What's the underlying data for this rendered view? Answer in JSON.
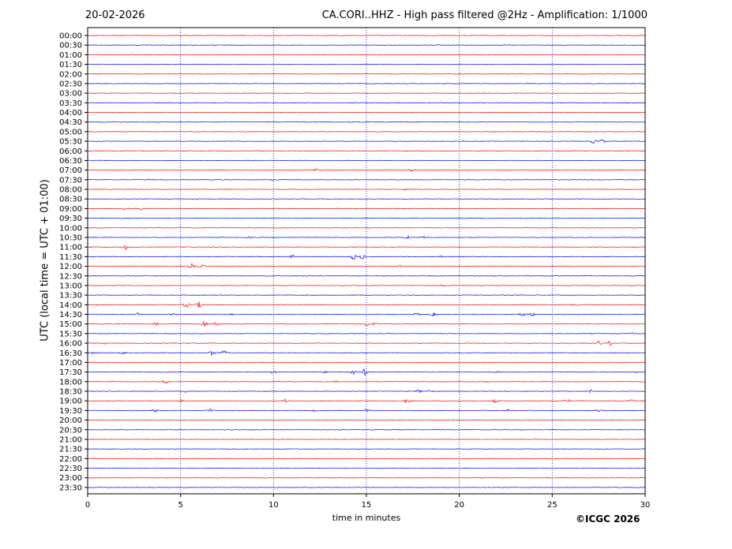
{
  "header": {
    "date": "20-02-2026",
    "title": "CA.CORI..HHZ - High pass filtered @2Hz - Amplification: 1/1000"
  },
  "footer": {
    "copyright": "©ICGC 2026"
  },
  "colors": {
    "even_trace": "#ff0000",
    "odd_trace": "#0000ff",
    "grid": "#0000aa"
  },
  "chart_data": {
    "type": "line",
    "title": "CA.CORI..HHZ - High pass filtered @2Hz - Amplification: 1/1000",
    "xlabel": "time in minutes",
    "ylabel": "UTC (local time = UTC + 01:00)",
    "xlim": [
      0,
      30
    ],
    "xticks": [
      0,
      5,
      10,
      15,
      20,
      25,
      30
    ],
    "grid_x": [
      5,
      10,
      15,
      20,
      25
    ],
    "grid": "vertical dotted",
    "series": [
      {
        "label": "00:00",
        "events": []
      },
      {
        "label": "00:30",
        "events": []
      },
      {
        "label": "01:00",
        "events": []
      },
      {
        "label": "01:30",
        "events": []
      },
      {
        "label": "02:00",
        "events": []
      },
      {
        "label": "02:30",
        "events": []
      },
      {
        "label": "03:00",
        "events": []
      },
      {
        "label": "03:30",
        "events": []
      },
      {
        "label": "04:00",
        "events": []
      },
      {
        "label": "04:30",
        "events": []
      },
      {
        "label": "05:00",
        "events": []
      },
      {
        "label": "05:30",
        "events": [
          {
            "t": 27.2,
            "a": 2.5
          },
          {
            "t": 27.7,
            "a": 2.5
          }
        ]
      },
      {
        "label": "06:00",
        "events": []
      },
      {
        "label": "06:30",
        "events": [
          {
            "t": 0.5,
            "a": 1.5
          }
        ]
      },
      {
        "label": "07:00",
        "events": [
          {
            "t": 12.3,
            "a": 1.5
          },
          {
            "t": 17.4,
            "a": 1.2
          }
        ]
      },
      {
        "label": "07:30",
        "events": [
          {
            "t": 9.9,
            "a": 1
          }
        ]
      },
      {
        "label": "08:00",
        "events": [
          {
            "t": 17.1,
            "a": 1.2
          }
        ]
      },
      {
        "label": "08:30",
        "events": []
      },
      {
        "label": "09:00",
        "events": [
          {
            "t": 2.0,
            "a": 1.5
          },
          {
            "t": 2.8,
            "a": 2.5
          }
        ]
      },
      {
        "label": "09:30",
        "events": []
      },
      {
        "label": "10:00",
        "events": []
      },
      {
        "label": "10:30",
        "events": [
          {
            "t": 8.7,
            "a": 1
          },
          {
            "t": 17.2,
            "a": 2
          },
          {
            "t": 18.1,
            "a": 2
          }
        ]
      },
      {
        "label": "11:00",
        "events": [
          {
            "t": 2.0,
            "a": 3.5
          }
        ]
      },
      {
        "label": "11:30",
        "events": [
          {
            "t": 11.0,
            "a": 2
          },
          {
            "t": 14.3,
            "a": 3.5
          },
          {
            "t": 14.8,
            "a": 3
          },
          {
            "t": 19.0,
            "a": 1
          }
        ]
      },
      {
        "label": "12:00",
        "events": [
          {
            "t": 5.6,
            "a": 3.5
          },
          {
            "t": 6.1,
            "a": 3
          },
          {
            "t": 16.8,
            "a": 1
          }
        ]
      },
      {
        "label": "12:30",
        "events": []
      },
      {
        "label": "13:00",
        "events": [
          {
            "t": 19.1,
            "a": 1.5
          }
        ]
      },
      {
        "label": "13:30",
        "events": []
      },
      {
        "label": "14:00",
        "events": [
          {
            "t": 0.5,
            "a": 1
          },
          {
            "t": 5.3,
            "a": 3.5
          },
          {
            "t": 6.0,
            "a": 3.5
          },
          {
            "t": 26.2,
            "a": 1.5
          }
        ]
      },
      {
        "label": "14:30",
        "events": [
          {
            "t": 2.7,
            "a": 2
          },
          {
            "t": 4.6,
            "a": 1.5
          },
          {
            "t": 7.7,
            "a": 1.5
          },
          {
            "t": 17.7,
            "a": 3
          },
          {
            "t": 18.6,
            "a": 3
          },
          {
            "t": 23.4,
            "a": 3
          },
          {
            "t": 23.9,
            "a": 2.5
          }
        ]
      },
      {
        "label": "15:00",
        "events": [
          {
            "t": 3.7,
            "a": 2
          },
          {
            "t": 6.3,
            "a": 4
          },
          {
            "t": 6.9,
            "a": 3.5
          },
          {
            "t": 15.0,
            "a": 2.5
          },
          {
            "t": 15.5,
            "a": 2.5
          }
        ]
      },
      {
        "label": "15:30",
        "events": [
          {
            "t": 29.3,
            "a": 1
          }
        ]
      },
      {
        "label": "16:00",
        "events": [
          {
            "t": 1.0,
            "a": 1
          },
          {
            "t": 27.5,
            "a": 3
          },
          {
            "t": 28.1,
            "a": 2.5
          }
        ]
      },
      {
        "label": "16:30",
        "events": [
          {
            "t": 0.3,
            "a": 1.5
          },
          {
            "t": 1.9,
            "a": 1.5
          },
          {
            "t": 6.7,
            "a": 3.5
          },
          {
            "t": 7.3,
            "a": 3.5
          }
        ]
      },
      {
        "label": "17:00",
        "events": []
      },
      {
        "label": "17:30",
        "events": [
          {
            "t": 10.0,
            "a": 2
          },
          {
            "t": 12.7,
            "a": 1.5
          },
          {
            "t": 14.3,
            "a": 4
          },
          {
            "t": 14.9,
            "a": 3.5
          },
          {
            "t": 22.0,
            "a": 1.5
          },
          {
            "t": 29.5,
            "a": 1.5
          }
        ]
      },
      {
        "label": "18:00",
        "events": [
          {
            "t": 4.2,
            "a": 2
          },
          {
            "t": 13.4,
            "a": 1.5
          },
          {
            "t": 21.5,
            "a": 1.5
          }
        ]
      },
      {
        "label": "18:30",
        "events": [
          {
            "t": 5.2,
            "a": 1.5
          },
          {
            "t": 17.8,
            "a": 2
          },
          {
            "t": 18.4,
            "a": 2
          },
          {
            "t": 27.0,
            "a": 2
          }
        ]
      },
      {
        "label": "19:00",
        "events": [
          {
            "t": 5.0,
            "a": 2
          },
          {
            "t": 10.6,
            "a": 2
          },
          {
            "t": 17.2,
            "a": 3
          },
          {
            "t": 21.9,
            "a": 2
          },
          {
            "t": 25.8,
            "a": 2.5
          },
          {
            "t": 29.2,
            "a": 2
          }
        ]
      },
      {
        "label": "19:30",
        "events": [
          {
            "t": 3.6,
            "a": 2
          },
          {
            "t": 6.6,
            "a": 2.5
          },
          {
            "t": 12.2,
            "a": 1.5
          },
          {
            "t": 15.0,
            "a": 1.5
          },
          {
            "t": 22.6,
            "a": 1.5
          },
          {
            "t": 27.5,
            "a": 1.5
          }
        ]
      },
      {
        "label": "20:00",
        "events": []
      },
      {
        "label": "20:30",
        "events": []
      },
      {
        "label": "21:00",
        "events": []
      },
      {
        "label": "21:30",
        "events": []
      },
      {
        "label": "22:00",
        "events": []
      },
      {
        "label": "22:30",
        "events": []
      },
      {
        "label": "23:00",
        "events": []
      },
      {
        "label": "23:30",
        "events": []
      }
    ]
  }
}
